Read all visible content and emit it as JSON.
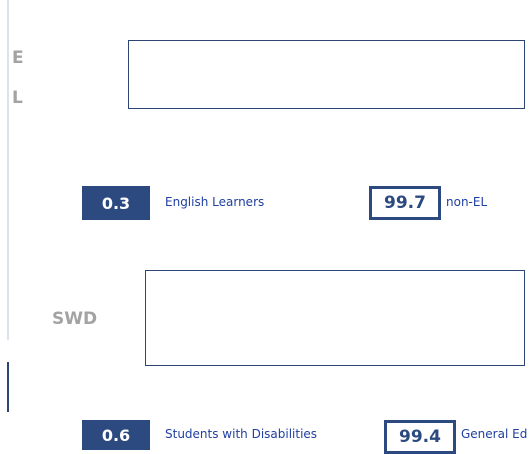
{
  "sections": [
    {
      "label_lines": [
        "E",
        "L"
      ],
      "group_value": "0.3",
      "group_label": "English Learners",
      "comparison_value": "99.7",
      "comparison_label": "non-EL"
    },
    {
      "label_lines": [
        "SWD"
      ],
      "group_value": "0.6",
      "group_label": "Students with Disabilities",
      "comparison_value": "99.4",
      "comparison_label": "General Ed"
    }
  ]
}
